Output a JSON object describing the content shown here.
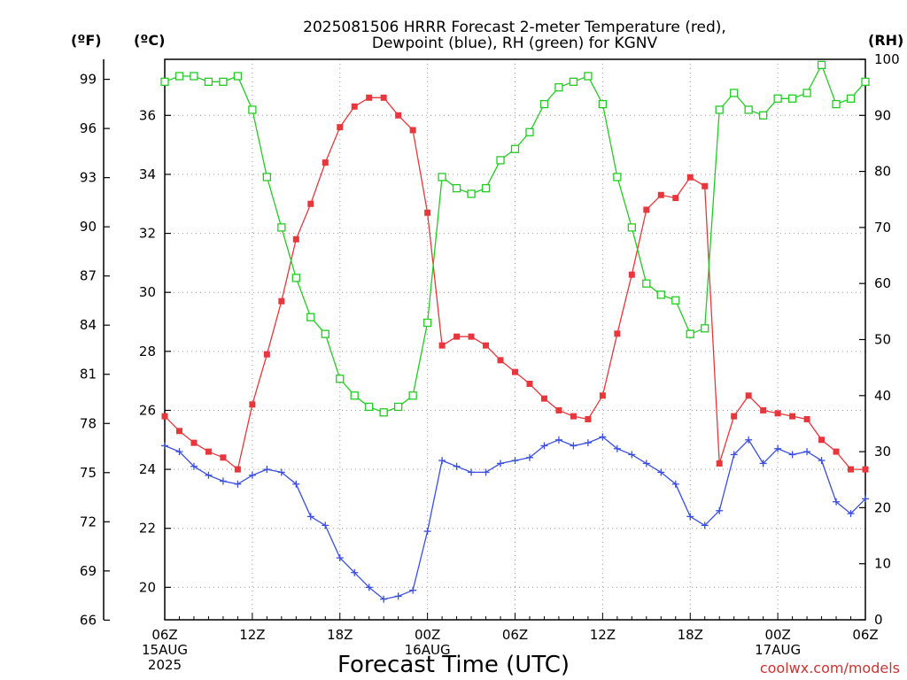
{
  "chart_data": {
    "type": "line",
    "title_lines": [
      "2025081506 HRRR Forecast 2-meter Temperature (red),",
      "Dewpoint (blue), RH (green) for KGNV"
    ],
    "xlabel": "Forecast Time (UTC)",
    "credit": "coolwx.com/models",
    "left_unit_f": "(ºF)",
    "left_unit_c": "(ºC)",
    "right_unit": "(RH)",
    "x_range_hours": [
      0,
      48
    ],
    "y_range_c": [
      18.9,
      37.9
    ],
    "y_range_rh": [
      0,
      100
    ],
    "yticks_f": [
      "66",
      "69",
      "72",
      "75",
      "78",
      "81",
      "84",
      "87",
      "90",
      "93",
      "96",
      "99"
    ],
    "yticks_c": [
      "20",
      "22",
      "24",
      "26",
      "28",
      "30",
      "32",
      "34",
      "36"
    ],
    "yticks_rh": [
      "0",
      "10",
      "20",
      "30",
      "40",
      "50",
      "60",
      "70",
      "80",
      "90",
      "100"
    ],
    "xticks": [
      {
        "hour": 0,
        "lines": [
          "06Z",
          "15AUG",
          "2025"
        ]
      },
      {
        "hour": 6,
        "lines": [
          "12Z"
        ]
      },
      {
        "hour": 12,
        "lines": [
          "18Z"
        ]
      },
      {
        "hour": 18,
        "lines": [
          "00Z",
          "16AUG"
        ]
      },
      {
        "hour": 24,
        "lines": [
          "06Z"
        ]
      },
      {
        "hour": 30,
        "lines": [
          "12Z"
        ]
      },
      {
        "hour": 36,
        "lines": [
          "18Z"
        ]
      },
      {
        "hour": 42,
        "lines": [
          "00Z",
          "17AUG"
        ]
      },
      {
        "hour": 48,
        "lines": [
          "06Z"
        ]
      }
    ],
    "grid": true,
    "series": [
      {
        "name": "Temperature",
        "color": "#e8373c",
        "marker": "filled-square",
        "axis": "celsius",
        "values": [
          25.8,
          25.3,
          24.9,
          24.6,
          24.4,
          24.0,
          26.2,
          27.9,
          29.7,
          31.8,
          33.0,
          34.4,
          35.6,
          36.3,
          36.6,
          36.6,
          36.0,
          35.5,
          32.7,
          28.2,
          28.5,
          28.5,
          28.2,
          27.7,
          27.3,
          26.9,
          26.4,
          26.0,
          25.8,
          25.7,
          26.5,
          28.6,
          30.6,
          32.8,
          33.3,
          33.2,
          33.9,
          33.6,
          24.2,
          25.8,
          26.5,
          26.0,
          25.9,
          25.8,
          25.7,
          25.0,
          24.6,
          24.0,
          24.0
        ]
      },
      {
        "name": "Dewpoint",
        "color": "#3a4fe0",
        "marker": "plus",
        "axis": "celsius",
        "values": [
          24.8,
          24.6,
          24.1,
          23.8,
          23.6,
          23.5,
          23.8,
          24.0,
          23.9,
          23.5,
          22.4,
          22.1,
          21.0,
          20.5,
          20.0,
          19.6,
          19.7,
          19.9,
          21.9,
          24.3,
          24.1,
          23.9,
          23.9,
          24.2,
          24.3,
          24.4,
          24.8,
          25.0,
          24.8,
          24.9,
          25.1,
          24.7,
          24.5,
          24.2,
          23.9,
          23.5,
          22.4,
          22.1,
          22.6,
          24.5,
          25.0,
          24.2,
          24.7,
          24.5,
          24.6,
          24.3,
          22.9,
          22.5,
          23.0
        ]
      },
      {
        "name": "RH",
        "color": "#22cc22",
        "marker": "open-square",
        "axis": "rh",
        "values": [
          96,
          97,
          97,
          96,
          96,
          97,
          91,
          79,
          70,
          61,
          54,
          51,
          43,
          40,
          38,
          37,
          38,
          40,
          53,
          79,
          77,
          76,
          77,
          82,
          84,
          87,
          92,
          95,
          96,
          97,
          92,
          79,
          70,
          60,
          58,
          57,
          51,
          52,
          91,
          94,
          91,
          90,
          93,
          93,
          94,
          99,
          92,
          93,
          96
        ]
      }
    ]
  }
}
